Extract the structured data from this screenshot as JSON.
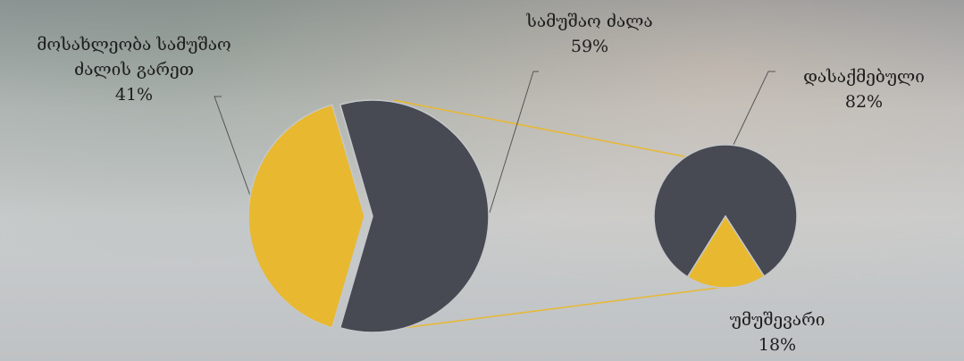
{
  "chart_data": [
    {
      "type": "pie",
      "categories": [
        "სამუშაო ძალა",
        "მოსახლეობა სამუშაო ძალის გარეთ"
      ],
      "values": [
        59,
        41
      ],
      "value_labels": [
        "59%",
        "41%"
      ],
      "colors": [
        "#474a52",
        "#e8b830"
      ]
    },
    {
      "type": "pie",
      "categories": [
        "დასაქმებული",
        "უმუშევარი"
      ],
      "values": [
        82,
        18
      ],
      "value_labels": [
        "82%",
        "18%"
      ],
      "colors": [
        "#474a52",
        "#e8b830"
      ]
    }
  ]
}
